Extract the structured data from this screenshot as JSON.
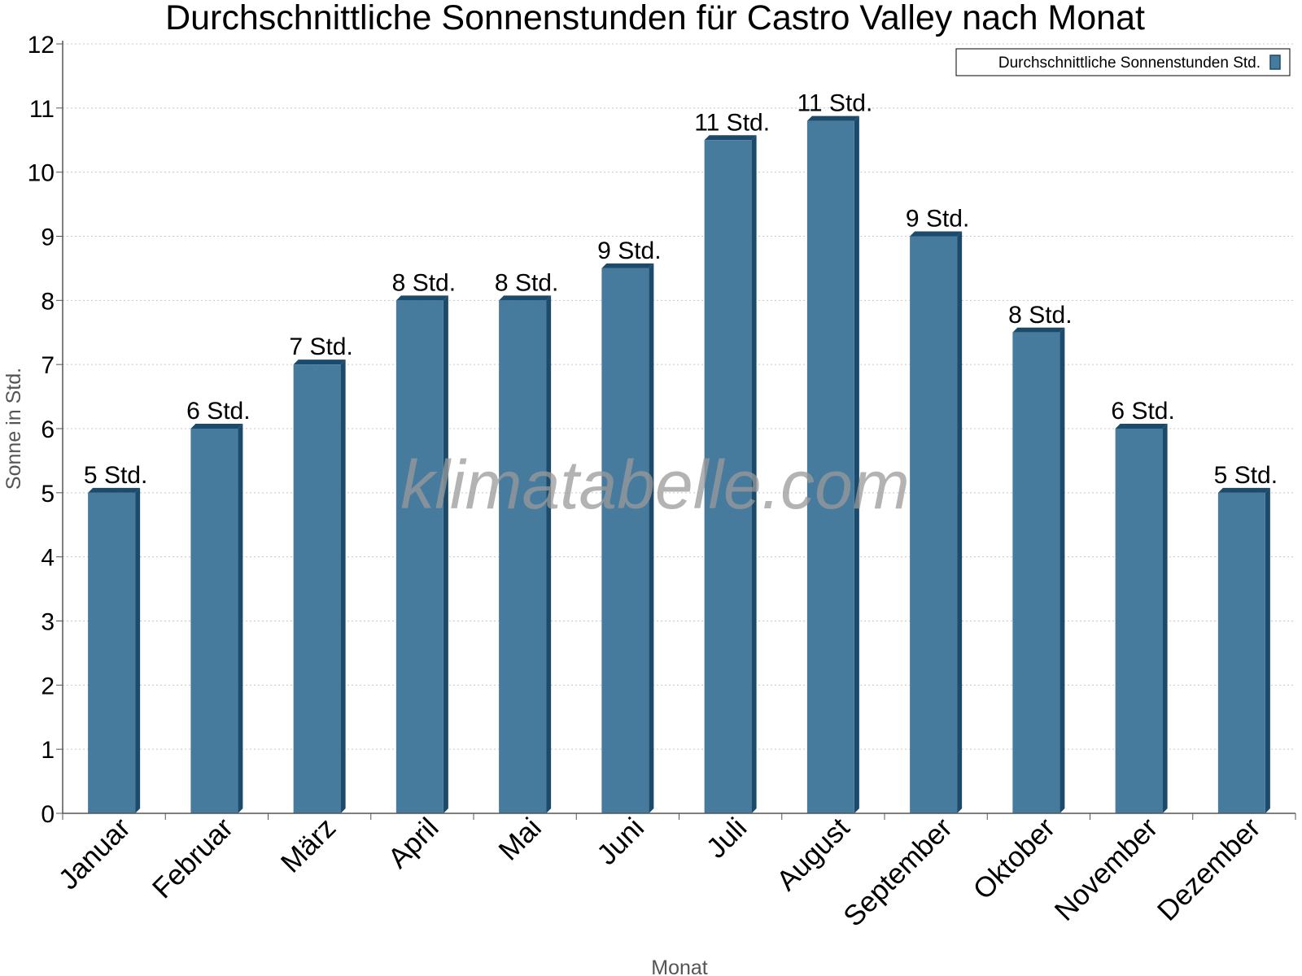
{
  "chart_data": {
    "type": "bar",
    "title": "Durchschnittliche Sonnenstunden für Castro Valley nach Monat",
    "xlabel": "Monat",
    "ylabel": "Sonne in Std.",
    "ylim": [
      0,
      12
    ],
    "yticks": [
      "0",
      "1",
      "2",
      "3",
      "4",
      "5",
      "6",
      "7",
      "8",
      "9",
      "10",
      "11",
      "12"
    ],
    "grid": true,
    "legend_position": "top-right",
    "categories": [
      "Januar",
      "Februar",
      "März",
      "April",
      "Mai",
      "Juni",
      "Juli",
      "August",
      "September",
      "Oktober",
      "November",
      "Dezember"
    ],
    "series": [
      {
        "name": "Durchschnittliche Sonnenstunden Std.",
        "values": [
          5,
          6,
          7,
          8,
          8,
          8.5,
          10.5,
          10.8,
          9,
          7.5,
          6,
          5
        ],
        "labels": [
          "5 Std.",
          "6 Std.",
          "7 Std.",
          "8 Std.",
          "8 Std.",
          "9 Std.",
          "11 Std.",
          "11 Std.",
          "9 Std.",
          "8 Std.",
          "6 Std.",
          "5 Std."
        ],
        "color": "#467b9e"
      }
    ],
    "watermark": "klimatabelle.com"
  },
  "colors": {
    "bar_face": "#467b9e",
    "bar_side": "#1c4a6b",
    "bar_top": "#1c4a6b",
    "gridline": "#c8c8c8",
    "axis": "#555555",
    "axis_label": "#555555"
  }
}
